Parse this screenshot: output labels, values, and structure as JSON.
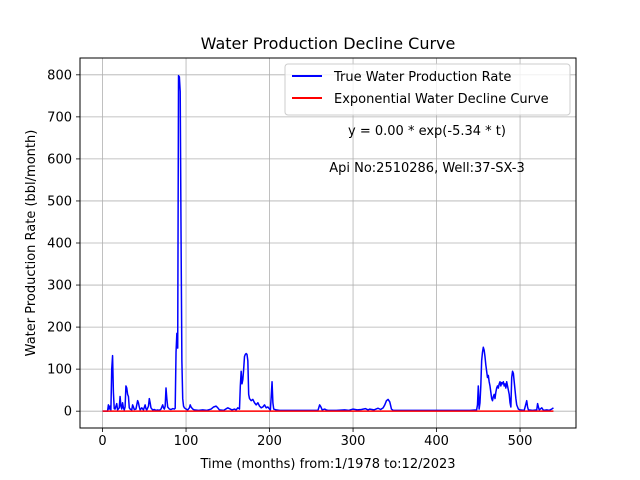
{
  "chart_data": {
    "type": "line",
    "title": "Water Production Decline Curve",
    "xlabel": "Time (months) from:1/1978 to:12/2023",
    "ylabel": "Water Production Rate (bbl/month)",
    "xlim": [
      -27,
      567
    ],
    "ylim": [
      -40,
      840
    ],
    "xticks": [
      0,
      100,
      200,
      300,
      400,
      500
    ],
    "yticks": [
      0,
      100,
      200,
      300,
      400,
      500,
      600,
      700,
      800
    ],
    "grid": true,
    "legend_position": "top-right",
    "annotations": [
      "y = 0.00 * exp(-5.34 * t)",
      "Api No:2510286, Well:37-SX-3"
    ],
    "series": [
      {
        "name": "True Water Production Rate",
        "color": "#0000ff",
        "points": [
          [
            0,
            0
          ],
          [
            6,
            0
          ],
          [
            7,
            15
          ],
          [
            8,
            5
          ],
          [
            9,
            12
          ],
          [
            10,
            3
          ],
          [
            11,
            100
          ],
          [
            12,
            132
          ],
          [
            13,
            45
          ],
          [
            14,
            6
          ],
          [
            15,
            5
          ],
          [
            17,
            18
          ],
          [
            18,
            3
          ],
          [
            20,
            8
          ],
          [
            21,
            35
          ],
          [
            22,
            12
          ],
          [
            23,
            5
          ],
          [
            24,
            20
          ],
          [
            25,
            8
          ],
          [
            26,
            3
          ],
          [
            27,
            10
          ],
          [
            28,
            60
          ],
          [
            29,
            55
          ],
          [
            30,
            40
          ],
          [
            31,
            35
          ],
          [
            32,
            8
          ],
          [
            33,
            5
          ],
          [
            35,
            3
          ],
          [
            36,
            15
          ],
          [
            37,
            10
          ],
          [
            38,
            4
          ],
          [
            40,
            5
          ],
          [
            42,
            25
          ],
          [
            43,
            20
          ],
          [
            44,
            10
          ],
          [
            45,
            3
          ],
          [
            47,
            8
          ],
          [
            49,
            3
          ],
          [
            51,
            15
          ],
          [
            52,
            6
          ],
          [
            53,
            3
          ],
          [
            55,
            12
          ],
          [
            56,
            30
          ],
          [
            57,
            20
          ],
          [
            58,
            8
          ],
          [
            60,
            3
          ],
          [
            62,
            4
          ],
          [
            64,
            2
          ],
          [
            66,
            3
          ],
          [
            68,
            2
          ],
          [
            70,
            5
          ],
          [
            72,
            15
          ],
          [
            73,
            8
          ],
          [
            74,
            5
          ],
          [
            75,
            12
          ],
          [
            76,
            55
          ],
          [
            77,
            30
          ],
          [
            78,
            10
          ],
          [
            80,
            5
          ],
          [
            82,
            4
          ],
          [
            84,
            6
          ],
          [
            86,
            5
          ],
          [
            87,
            7
          ],
          [
            88,
            140
          ],
          [
            89,
            185
          ],
          [
            90,
            150
          ],
          [
            91,
            798
          ],
          [
            92,
            795
          ],
          [
            93,
            760
          ],
          [
            94,
            420
          ],
          [
            95,
            120
          ],
          [
            96,
            30
          ],
          [
            97,
            12
          ],
          [
            98,
            8
          ],
          [
            100,
            5
          ],
          [
            102,
            3
          ],
          [
            104,
            8
          ],
          [
            105,
            15
          ],
          [
            106,
            10
          ],
          [
            108,
            5
          ],
          [
            110,
            3
          ],
          [
            115,
            2
          ],
          [
            120,
            3
          ],
          [
            125,
            2
          ],
          [
            130,
            5
          ],
          [
            133,
            10
          ],
          [
            136,
            12
          ],
          [
            138,
            8
          ],
          [
            140,
            3
          ],
          [
            145,
            2
          ],
          [
            150,
            8
          ],
          [
            153,
            5
          ],
          [
            155,
            3
          ],
          [
            158,
            5
          ],
          [
            160,
            3
          ],
          [
            162,
            8
          ],
          [
            164,
            5
          ],
          [
            165,
            60
          ],
          [
            166,
            95
          ],
          [
            167,
            65
          ],
          [
            168,
            75
          ],
          [
            169,
            100
          ],
          [
            170,
            130
          ],
          [
            171,
            135
          ],
          [
            172,
            137
          ],
          [
            173,
            135
          ],
          [
            174,
            120
          ],
          [
            175,
            40
          ],
          [
            176,
            30
          ],
          [
            178,
            25
          ],
          [
            180,
            28
          ],
          [
            182,
            20
          ],
          [
            184,
            15
          ],
          [
            186,
            20
          ],
          [
            188,
            12
          ],
          [
            190,
            8
          ],
          [
            192,
            10
          ],
          [
            194,
            15
          ],
          [
            196,
            8
          ],
          [
            198,
            10
          ],
          [
            200,
            5
          ],
          [
            201,
            3
          ],
          [
            202,
            35
          ],
          [
            203,
            70
          ],
          [
            204,
            20
          ],
          [
            205,
            5
          ],
          [
            208,
            3
          ],
          [
            212,
            2
          ],
          [
            220,
            2
          ],
          [
            230,
            2
          ],
          [
            240,
            2
          ],
          [
            250,
            2
          ],
          [
            258,
            2
          ],
          [
            260,
            15
          ],
          [
            261,
            12
          ],
          [
            262,
            8
          ],
          [
            263,
            3
          ],
          [
            266,
            5
          ],
          [
            268,
            3
          ],
          [
            270,
            2
          ],
          [
            280,
            2
          ],
          [
            290,
            3
          ],
          [
            295,
            2
          ],
          [
            300,
            5
          ],
          [
            305,
            3
          ],
          [
            310,
            4
          ],
          [
            315,
            6
          ],
          [
            318,
            3
          ],
          [
            320,
            5
          ],
          [
            325,
            3
          ],
          [
            330,
            7
          ],
          [
            333,
            4
          ],
          [
            336,
            8
          ],
          [
            338,
            15
          ],
          [
            340,
            25
          ],
          [
            342,
            28
          ],
          [
            344,
            22
          ],
          [
            346,
            5
          ],
          [
            348,
            2
          ],
          [
            360,
            2
          ],
          [
            380,
            2
          ],
          [
            400,
            2
          ],
          [
            420,
            2
          ],
          [
            440,
            2
          ],
          [
            448,
            3
          ],
          [
            449,
            15
          ],
          [
            450,
            60
          ],
          [
            451,
            5
          ],
          [
            452,
            20
          ],
          [
            453,
            60
          ],
          [
            454,
            120
          ],
          [
            455,
            140
          ],
          [
            456,
            152
          ],
          [
            457,
            145
          ],
          [
            458,
            130
          ],
          [
            459,
            110
          ],
          [
            460,
            95
          ],
          [
            461,
            80
          ],
          [
            462,
            85
          ],
          [
            463,
            70
          ],
          [
            464,
            60
          ],
          [
            465,
            45
          ],
          [
            466,
            30
          ],
          [
            467,
            25
          ],
          [
            468,
            35
          ],
          [
            469,
            40
          ],
          [
            470,
            30
          ],
          [
            471,
            45
          ],
          [
            472,
            55
          ],
          [
            473,
            60
          ],
          [
            474,
            55
          ],
          [
            475,
            65
          ],
          [
            476,
            70
          ],
          [
            477,
            60
          ],
          [
            478,
            68
          ],
          [
            479,
            65
          ],
          [
            480,
            70
          ],
          [
            481,
            60
          ],
          [
            482,
            65
          ],
          [
            483,
            55
          ],
          [
            484,
            70
          ],
          [
            485,
            60
          ],
          [
            486,
            50
          ],
          [
            487,
            40
          ],
          [
            488,
            20
          ],
          [
            489,
            10
          ],
          [
            490,
            80
          ],
          [
            491,
            95
          ],
          [
            492,
            90
          ],
          [
            493,
            70
          ],
          [
            494,
            50
          ],
          [
            495,
            30
          ],
          [
            496,
            15
          ],
          [
            497,
            10
          ],
          [
            498,
            5
          ],
          [
            500,
            3
          ],
          [
            505,
            2
          ],
          [
            508,
            25
          ],
          [
            509,
            10
          ],
          [
            510,
            3
          ],
          [
            515,
            2
          ],
          [
            520,
            3
          ],
          [
            521,
            18
          ],
          [
            522,
            10
          ],
          [
            523,
            3
          ],
          [
            526,
            8
          ],
          [
            528,
            2
          ],
          [
            532,
            3
          ],
          [
            535,
            2
          ],
          [
            538,
            5
          ],
          [
            540,
            8
          ]
        ]
      },
      {
        "name": "Exponential Water Decline Curve",
        "color": "#ff0000",
        "points": [
          [
            0,
            0
          ],
          [
            540,
            0
          ]
        ]
      }
    ]
  }
}
